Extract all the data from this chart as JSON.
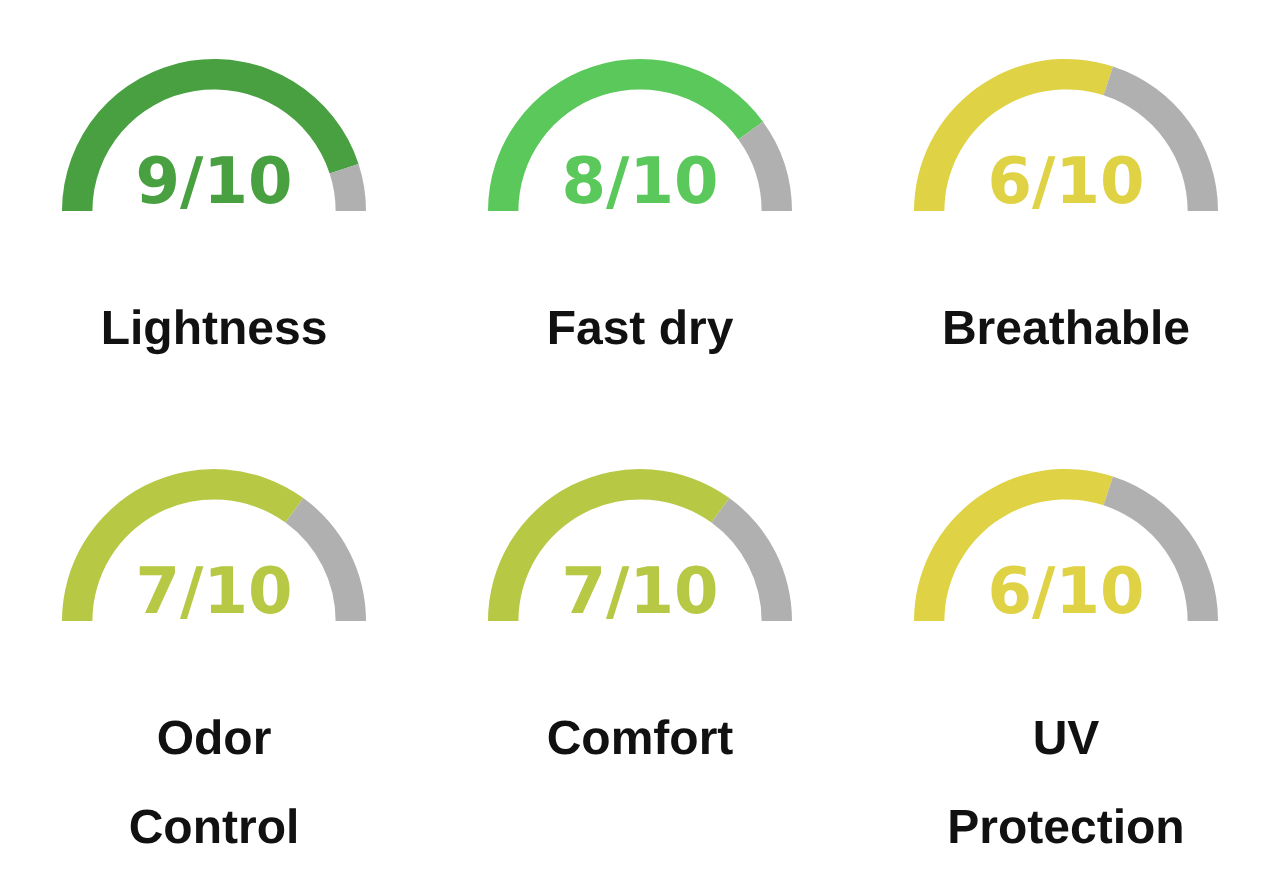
{
  "chart_data": [
    {
      "type": "donut",
      "title": "Lightness",
      "annotations": [
        "9/10"
      ],
      "categories": [
        null,
        null
      ],
      "values": [
        90,
        10
      ],
      "colors": [
        "#48a041",
        "#b0b0b0"
      ]
    },
    {
      "type": "donut",
      "title": "Fast dry",
      "annotations": [
        "8/10"
      ],
      "categories": [
        null,
        null
      ],
      "values": [
        80,
        20
      ],
      "colors": [
        "#5ac85a",
        "#b0b0b0"
      ]
    },
    {
      "type": "donut",
      "title": "Breathable",
      "annotations": [
        "6/10"
      ],
      "categories": [
        null,
        null
      ],
      "values": [
        60,
        40
      ],
      "colors": [
        "#dfd244",
        "#b0b0b0"
      ]
    },
    {
      "type": "donut",
      "title": "Odor Control",
      "annotations": [
        "7/10"
      ],
      "categories": [
        null,
        null
      ],
      "values": [
        70,
        30
      ],
      "colors": [
        "#b6c844",
        "#b0b0b0"
      ]
    },
    {
      "type": "donut",
      "title": "Comfort",
      "annotations": [
        "7/10"
      ],
      "categories": [
        null,
        null
      ],
      "values": [
        70,
        30
      ],
      "colors": [
        "#b6c844",
        "#b0b0b0"
      ]
    },
    {
      "type": "donut",
      "title": "UV Protection",
      "annotations": [
        "6/10"
      ],
      "categories": [
        null,
        null
      ],
      "values": [
        60,
        40
      ],
      "colors": [
        "#dfd244",
        "#b0b0b0"
      ]
    }
  ]
}
